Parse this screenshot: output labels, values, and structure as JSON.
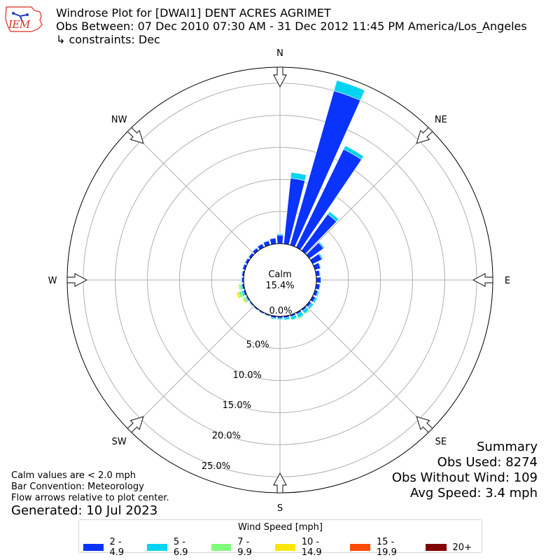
{
  "header": {
    "title": "Windrose Plot for [DWAI1] DENT ACRES AGRIMET",
    "subtitle": "Obs Between: 07 Dec 2010 07:30 AM - 31 Dec 2012 11:45 PM America/Los_Angeles",
    "constraints": "↳ constraints: Dec",
    "logo_text": "IEM"
  },
  "summary": {
    "heading": "Summary",
    "obs_used": "Obs Used: 8274",
    "obs_without_wind": "Obs Without Wind: 109",
    "avg_speed": "Avg Speed: 3.4 mph"
  },
  "notes": {
    "calm_note": "Calm values are < 2.0 mph",
    "bar_convention": "Bar Convention: Meteorology",
    "flow_arrows": "Flow arrows relative to plot center.",
    "generated": "Generated: 10 Jul 2023"
  },
  "colors": {
    "bins": [
      "#0a33fb",
      "#00d4f0",
      "#7ffd7a",
      "#fbe600",
      "#ff4a00",
      "#800000"
    ],
    "grid": "#b0b0b0"
  },
  "chart_data": {
    "type": "windrose",
    "calm_label": "Calm",
    "calm_value": "15.4%",
    "directions": [
      "N",
      "NE",
      "E",
      "SE",
      "S",
      "SW",
      "W",
      "NW"
    ],
    "radial_ticks": [
      "0.0%",
      "5.0%",
      "10.0%",
      "15.0%",
      "20.0%",
      "25.0%"
    ],
    "radial_max": 27.5,
    "legend_title": "Wind Speed [mph]",
    "bins": [
      "2 - 4.9",
      "5 - 6.9",
      "7 - 9.9",
      "10 - 14.9",
      "15 - 19.9",
      "20+"
    ],
    "sector_width_deg": 10,
    "sectors": [
      {
        "dir": 0,
        "values": [
          1.3,
          0.2,
          0,
          0,
          0,
          0
        ]
      },
      {
        "dir": 10,
        "values": [
          10.3,
          0.9,
          0,
          0,
          0,
          0
        ]
      },
      {
        "dir": 20,
        "values": [
          25.0,
          1.7,
          0,
          0,
          0,
          0
        ]
      },
      {
        "dir": 30,
        "values": [
          17.0,
          0.6,
          0,
          0,
          0,
          0
        ]
      },
      {
        "dir": 40,
        "values": [
          7.0,
          0.5,
          0,
          0,
          0,
          0
        ]
      },
      {
        "dir": 50,
        "values": [
          2.7,
          0.2,
          0,
          0,
          0,
          0
        ]
      },
      {
        "dir": 60,
        "values": [
          1.6,
          0.2,
          0,
          0,
          0,
          0
        ]
      },
      {
        "dir": 70,
        "values": [
          0.9,
          0.1,
          0,
          0,
          0,
          0
        ]
      },
      {
        "dir": 80,
        "values": [
          0.6,
          0.1,
          0,
          0,
          0,
          0
        ]
      },
      {
        "dir": 90,
        "values": [
          0.7,
          0.1,
          0,
          0,
          0,
          0
        ]
      },
      {
        "dir": 100,
        "values": [
          0.6,
          0.1,
          0,
          0,
          0,
          0
        ]
      },
      {
        "dir": 110,
        "values": [
          0.5,
          0.2,
          0,
          0,
          0,
          0
        ]
      },
      {
        "dir": 120,
        "values": [
          0.5,
          0.3,
          0.1,
          0,
          0,
          0
        ]
      },
      {
        "dir": 130,
        "values": [
          0.4,
          0.4,
          0.1,
          0,
          0,
          0
        ]
      },
      {
        "dir": 140,
        "values": [
          0.3,
          0.5,
          0.2,
          0,
          0,
          0
        ]
      },
      {
        "dir": 150,
        "values": [
          0.3,
          0.6,
          0.2,
          0,
          0,
          0
        ]
      },
      {
        "dir": 160,
        "values": [
          0.3,
          0.5,
          0.1,
          0,
          0,
          0
        ]
      },
      {
        "dir": 170,
        "values": [
          0.3,
          0.3,
          0.1,
          0,
          0,
          0
        ]
      },
      {
        "dir": 180,
        "values": [
          0.3,
          0.2,
          0,
          0,
          0,
          0
        ]
      },
      {
        "dir": 190,
        "values": [
          0.3,
          0.2,
          0,
          0,
          0,
          0
        ]
      },
      {
        "dir": 200,
        "values": [
          0.2,
          0.1,
          0,
          0,
          0,
          0
        ]
      },
      {
        "dir": 210,
        "values": [
          0.2,
          0.1,
          0,
          0,
          0,
          0
        ]
      },
      {
        "dir": 220,
        "values": [
          0.2,
          0.1,
          0,
          0,
          0,
          0
        ]
      },
      {
        "dir": 230,
        "values": [
          0.2,
          0.1,
          0.1,
          0,
          0,
          0
        ]
      },
      {
        "dir": 240,
        "values": [
          0.2,
          0.2,
          0.3,
          0.2,
          0,
          0
        ]
      },
      {
        "dir": 250,
        "values": [
          0.3,
          0.3,
          0.5,
          0.3,
          0,
          0
        ]
      },
      {
        "dir": 260,
        "values": [
          0.3,
          0.2,
          0.3,
          0.1,
          0,
          0
        ]
      },
      {
        "dir": 270,
        "values": [
          0.3,
          0.1,
          0.1,
          0,
          0,
          0
        ]
      },
      {
        "dir": 280,
        "values": [
          0.3,
          0.1,
          0,
          0,
          0,
          0
        ]
      },
      {
        "dir": 290,
        "values": [
          0.4,
          0.1,
          0,
          0,
          0,
          0
        ]
      },
      {
        "dir": 300,
        "values": [
          0.4,
          0.1,
          0,
          0,
          0,
          0
        ]
      },
      {
        "dir": 310,
        "values": [
          0.4,
          0.1,
          0,
          0,
          0,
          0
        ]
      },
      {
        "dir": 320,
        "values": [
          0.5,
          0.1,
          0,
          0,
          0,
          0
        ]
      },
      {
        "dir": 330,
        "values": [
          0.6,
          0.1,
          0,
          0,
          0,
          0
        ]
      },
      {
        "dir": 340,
        "values": [
          0.7,
          0.1,
          0,
          0,
          0,
          0
        ]
      },
      {
        "dir": 350,
        "values": [
          0.9,
          0.1,
          0,
          0,
          0,
          0
        ]
      }
    ]
  }
}
